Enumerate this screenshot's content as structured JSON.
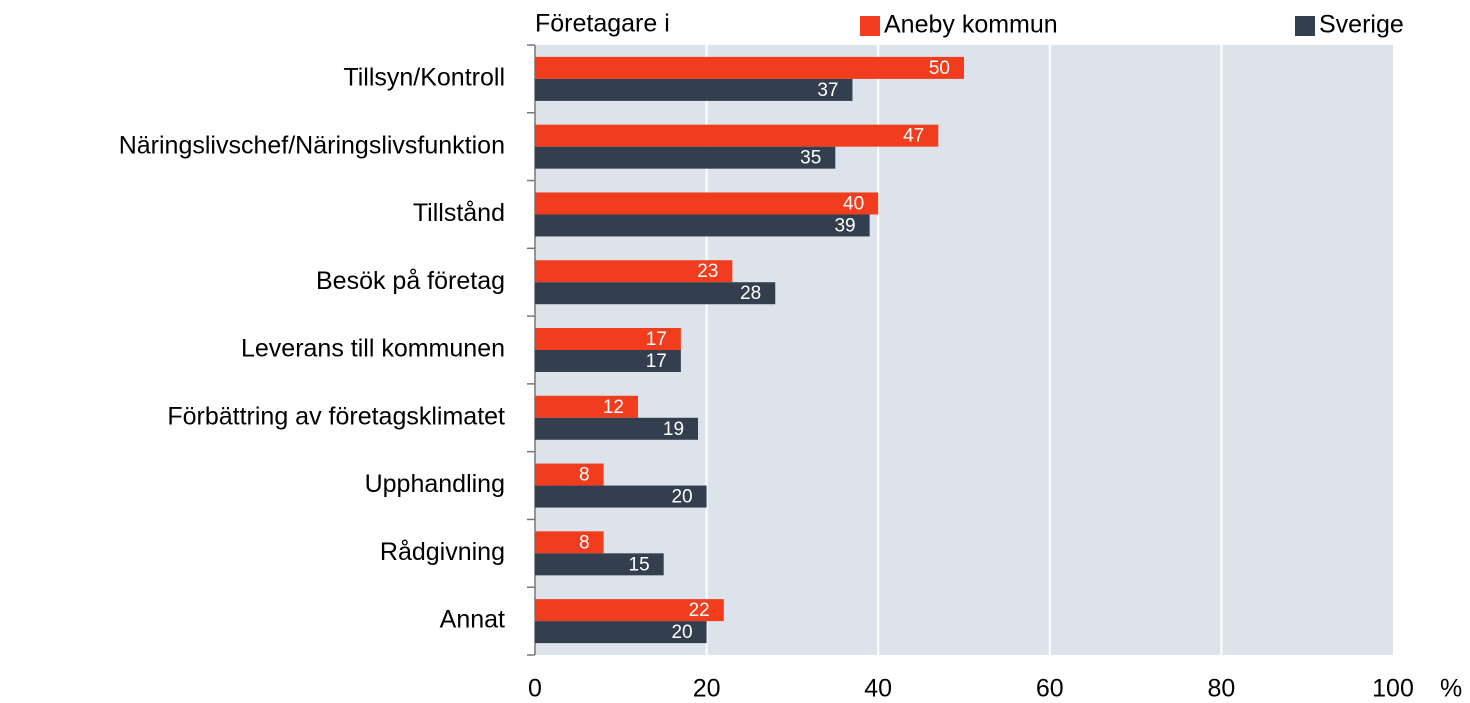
{
  "chart_data": {
    "type": "bar",
    "orientation": "horizontal",
    "title": "Företagare i",
    "xlabel": "%",
    "categories": [
      "Tillsyn/Kontroll",
      "Näringslivschef/Näringslivsfunktion",
      "Tillstånd",
      "Besök på företag",
      "Leverans till kommunen",
      "Förbättring av företagsklimatet",
      "Upphandling",
      "Rådgivning",
      "Annat"
    ],
    "series": [
      {
        "name": "Aneby kommun",
        "color": "#f23c1e",
        "values": [
          50,
          47,
          40,
          23,
          17,
          12,
          8,
          8,
          22
        ]
      },
      {
        "name": "Sverige",
        "color": "#333f4f",
        "values": [
          37,
          35,
          39,
          28,
          17,
          19,
          20,
          15,
          20
        ]
      }
    ],
    "xlim": [
      0,
      100
    ],
    "xticks": [
      0,
      20,
      40,
      60,
      80,
      100
    ],
    "grid": true,
    "legend": "top",
    "background": "#dde3ea"
  }
}
